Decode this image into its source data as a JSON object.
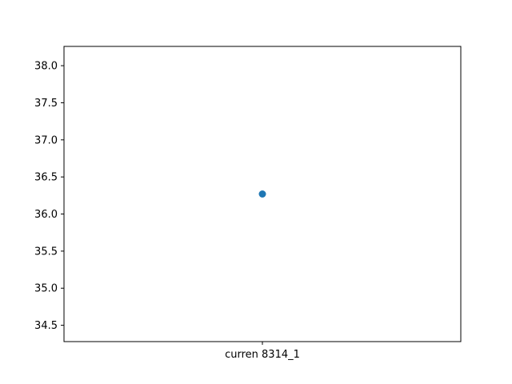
{
  "chart_data": {
    "type": "scatter",
    "title": "",
    "xlabel": "",
    "ylabel": "",
    "categories": [
      "curren 8314_1"
    ],
    "series": [
      {
        "values": [
          36.27
        ],
        "color": "#1f77b4"
      }
    ],
    "ylim": [
      34.28,
      38.26
    ],
    "yticks": [
      34.5,
      35.0,
      35.5,
      36.0,
      36.5,
      37.0,
      37.5,
      38.0
    ],
    "ytick_labels": [
      "34.5",
      "35.0",
      "35.5",
      "36.0",
      "36.5",
      "37.0",
      "37.5",
      "38.0"
    ],
    "grid": false,
    "legend": "none"
  }
}
